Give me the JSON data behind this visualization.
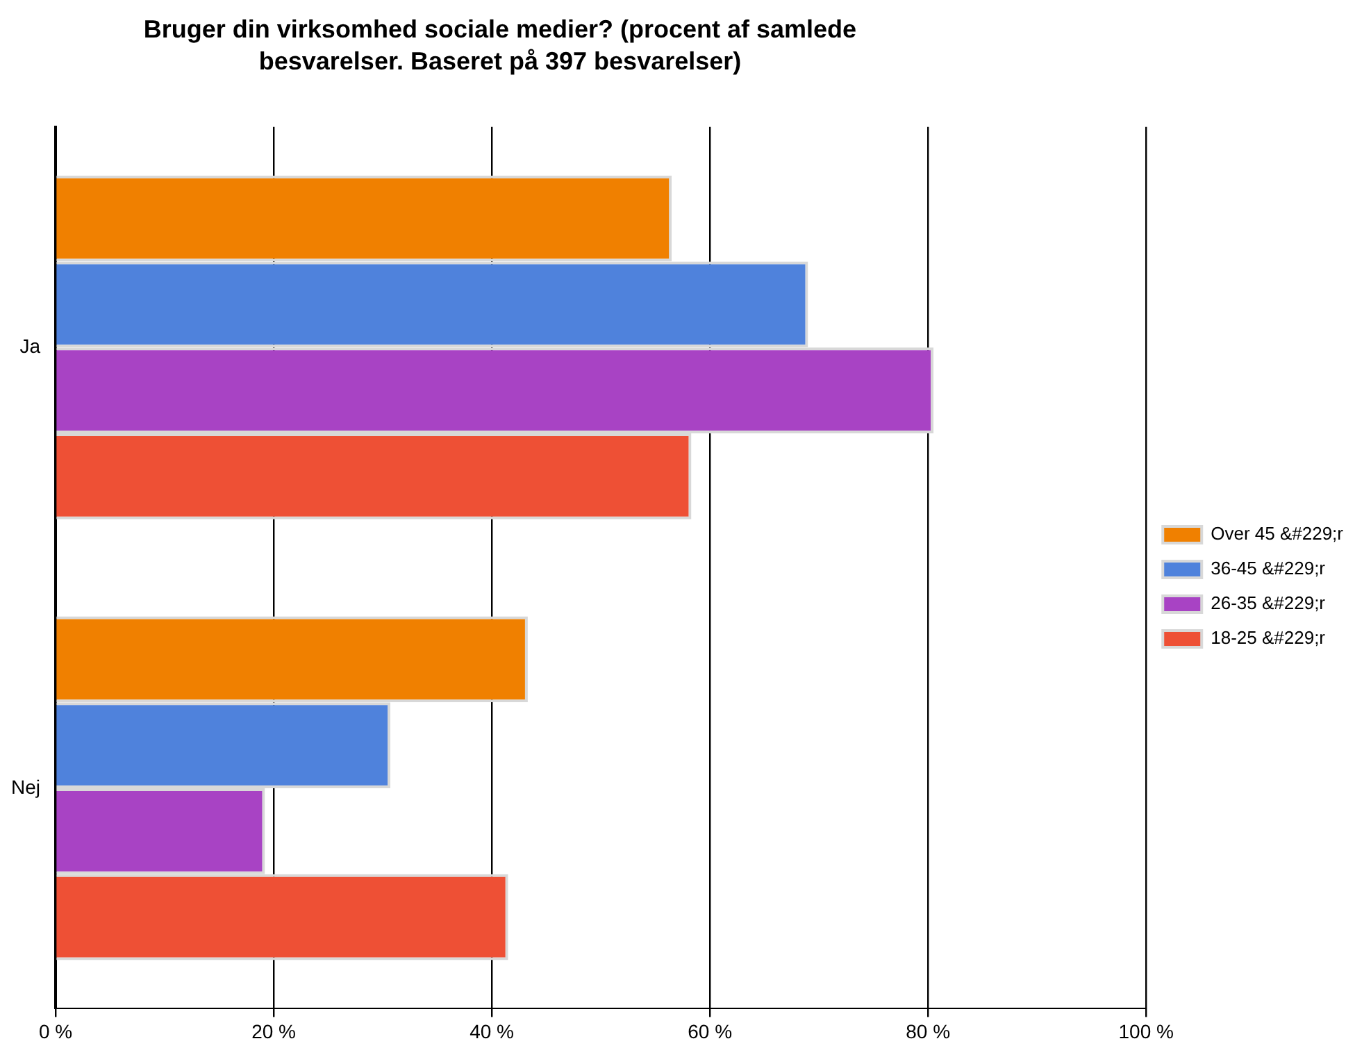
{
  "chart_data": {
    "type": "bar",
    "orientation": "horizontal",
    "title": "Bruger din virksomhed sociale medier? (procent af samlede besvarelser. Baseret på 397 besvarelser)",
    "categories": [
      "Ja",
      "Nej"
    ],
    "series": [
      {
        "name": "Over 45 &#229;r",
        "color": "#f08000",
        "values": [
          56.5,
          43.3
        ]
      },
      {
        "name": "36-45 &#229;r",
        "color": "#4f82dc",
        "values": [
          69.0,
          30.7
        ]
      },
      {
        "name": "26-35 &#229;r",
        "color": "#a843c4",
        "values": [
          80.5,
          19.2
        ]
      },
      {
        "name": "18-25 &#229;r",
        "color": "#ee5035",
        "values": [
          58.3,
          41.5
        ]
      }
    ],
    "xlim": [
      0,
      100
    ],
    "xticks": [
      {
        "value": 0,
        "label": "0 %"
      },
      {
        "value": 20,
        "label": "20 %"
      },
      {
        "value": 40,
        "label": "40 %"
      },
      {
        "value": 60,
        "label": "60 %"
      },
      {
        "value": 80,
        "label": "80 %"
      },
      {
        "value": 100,
        "label": "100 %"
      }
    ],
    "grid": "x",
    "legend": "right"
  }
}
